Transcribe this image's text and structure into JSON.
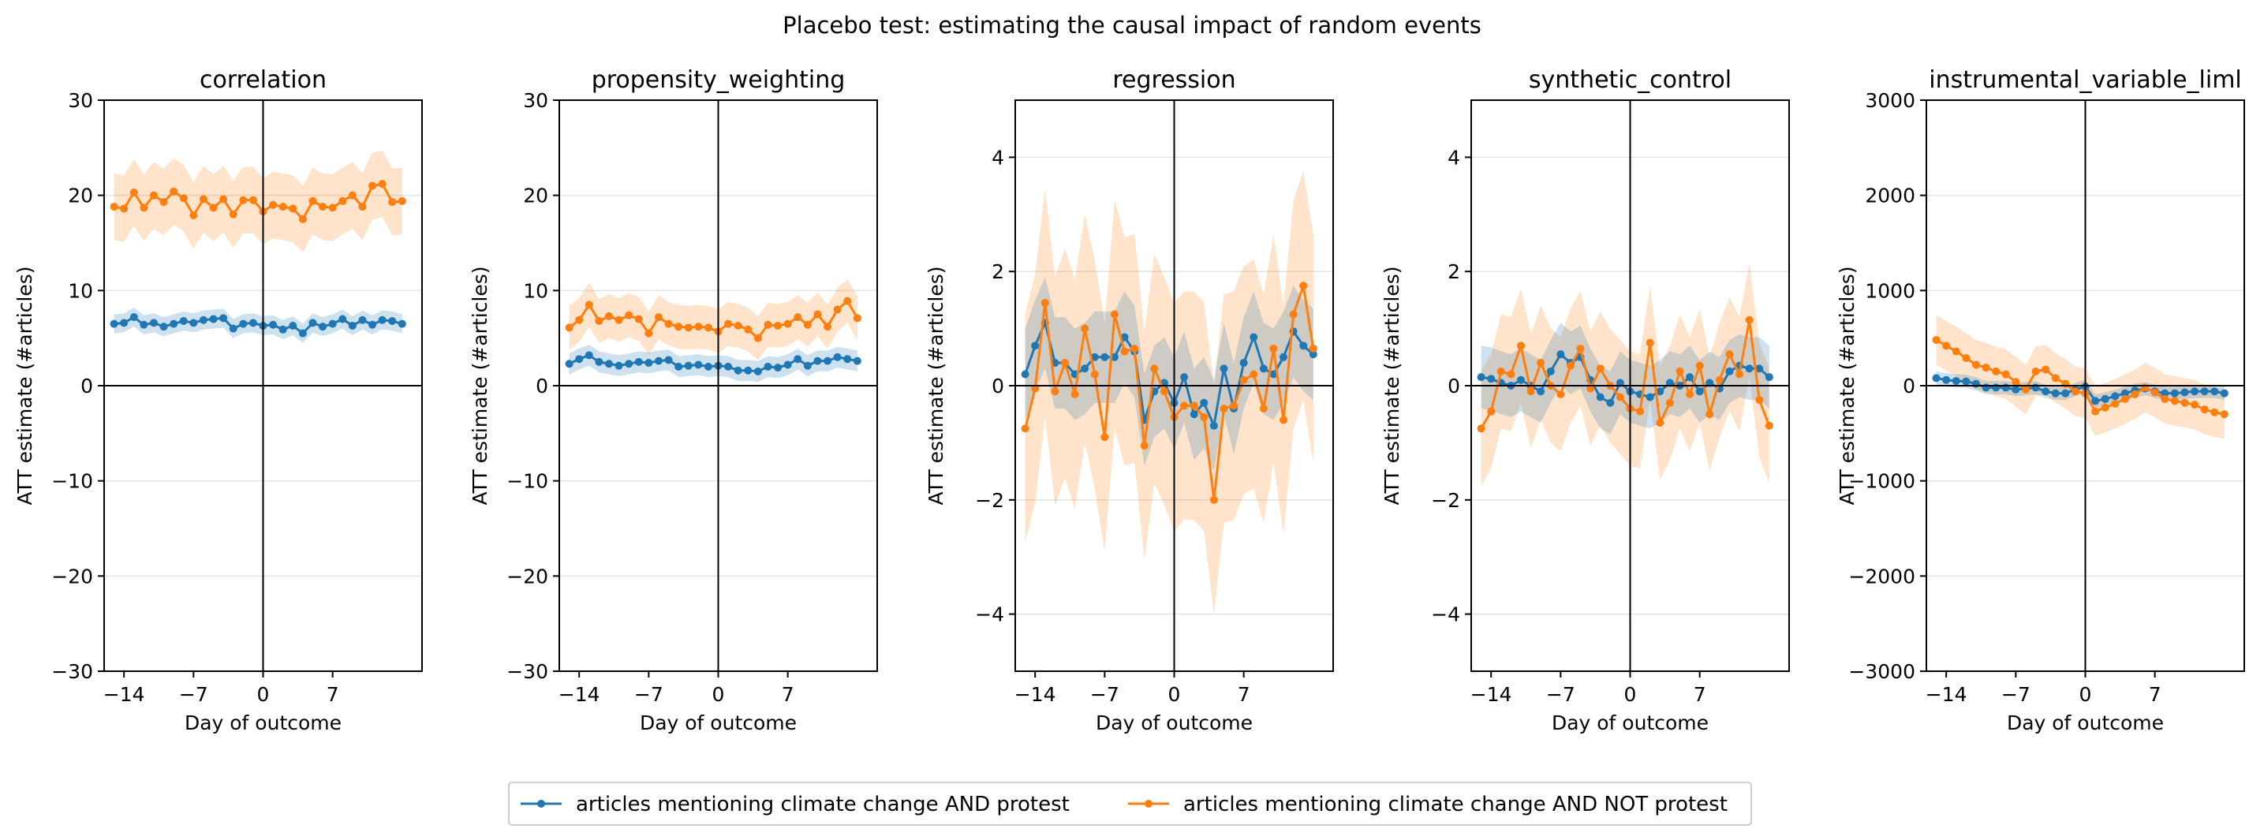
{
  "figure": {
    "suptitle": "Placebo test: estimating the causal impact of random events",
    "legend": {
      "placement": "bottom-center",
      "entries": [
        {
          "label": "articles mentioning climate change AND protest",
          "color": "#1f77b4"
        },
        {
          "label": "articles mentioning climate change AND NOT protest",
          "color": "#ff7f0e"
        }
      ]
    }
  },
  "chart_data": [
    {
      "type": "line",
      "title": "correlation",
      "xlabel": "Day of outcome",
      "ylabel": "ATT estimate (#articles)",
      "xlim": [
        -16,
        16
      ],
      "ylim": [
        -30,
        30
      ],
      "xticks": [
        -14,
        -7,
        0,
        7
      ],
      "yticks": [
        -30,
        -20,
        -10,
        0,
        10,
        20,
        30
      ],
      "x": [
        -15,
        -14,
        -13,
        -12,
        -11,
        -10,
        -9,
        -8,
        -7,
        -6,
        -5,
        -4,
        -3,
        -2,
        -1,
        0,
        1,
        2,
        3,
        4,
        5,
        6,
        7,
        8,
        9,
        10,
        11,
        12,
        13,
        14
      ],
      "series": [
        {
          "name": "articles mentioning climate change AND protest",
          "color": "#1f77b4",
          "values": [
            6.5,
            6.6,
            7.2,
            6.4,
            6.6,
            6.2,
            6.5,
            6.8,
            6.6,
            6.9,
            7.0,
            7.1,
            6.0,
            6.5,
            6.6,
            6.3,
            6.4,
            5.9,
            6.3,
            5.5,
            6.6,
            6.2,
            6.5,
            7.0,
            6.3,
            6.9,
            6.4,
            6.9,
            6.8,
            6.5
          ],
          "ci_halfwidth": 1.0
        },
        {
          "name": "articles mentioning climate change AND NOT protest",
          "color": "#ff7f0e",
          "values": [
            18.8,
            18.6,
            20.3,
            18.7,
            20.0,
            19.3,
            20.4,
            19.7,
            17.9,
            19.6,
            18.7,
            19.6,
            18.0,
            19.5,
            19.5,
            18.3,
            19.0,
            18.8,
            18.6,
            17.5,
            19.4,
            18.8,
            18.7,
            19.4,
            20.0,
            18.8,
            21.0,
            21.2,
            19.3,
            19.4
          ],
          "ci_halfwidth": 3.5
        }
      ]
    },
    {
      "type": "line",
      "title": "propensity_weighting",
      "xlabel": "Day of outcome",
      "ylabel": "ATT estimate (#articles)",
      "xlim": [
        -16,
        16
      ],
      "ylim": [
        -30,
        30
      ],
      "xticks": [
        -14,
        -7,
        0,
        7
      ],
      "yticks": [
        -30,
        -20,
        -10,
        0,
        10,
        20,
        30
      ],
      "x": [
        -15,
        -14,
        -13,
        -12,
        -11,
        -10,
        -9,
        -8,
        -7,
        -6,
        -5,
        -4,
        -3,
        -2,
        -1,
        0,
        1,
        2,
        3,
        4,
        5,
        6,
        7,
        8,
        9,
        10,
        11,
        12,
        13,
        14
      ],
      "series": [
        {
          "name": "articles mentioning climate change AND protest",
          "color": "#1f77b4",
          "values": [
            2.3,
            2.8,
            3.2,
            2.5,
            2.3,
            2.1,
            2.3,
            2.5,
            2.4,
            2.6,
            2.7,
            2.0,
            2.1,
            2.2,
            2.0,
            2.1,
            2.0,
            1.6,
            1.6,
            1.5,
            2.0,
            1.9,
            2.2,
            2.8,
            2.1,
            2.6,
            2.6,
            3.0,
            2.8,
            2.6
          ],
          "ci_halfwidth": 1.1
        },
        {
          "name": "articles mentioning climate change AND NOT protest",
          "color": "#ff7f0e",
          "values": [
            6.1,
            6.9,
            8.5,
            6.8,
            7.3,
            6.9,
            7.4,
            7.0,
            5.5,
            7.2,
            6.5,
            6.2,
            6.1,
            6.2,
            6.1,
            5.7,
            6.5,
            6.3,
            5.9,
            5.0,
            6.4,
            6.3,
            6.5,
            7.2,
            6.4,
            7.5,
            6.2,
            8.0,
            8.9,
            7.1
          ],
          "ci_halfwidth": 2.3
        }
      ]
    },
    {
      "type": "line",
      "title": "regression",
      "xlabel": "Day of outcome",
      "ylabel": "ATT estimate (#articles)",
      "xlim": [
        -16,
        16
      ],
      "ylim": [
        -5,
        5
      ],
      "xticks": [
        -14,
        -7,
        0,
        7
      ],
      "yticks": [
        -4,
        -2,
        0,
        2,
        4
      ],
      "x": [
        -15,
        -14,
        -13,
        -12,
        -11,
        -10,
        -9,
        -8,
        -7,
        -6,
        -5,
        -4,
        -3,
        -2,
        -1,
        0,
        1,
        2,
        3,
        4,
        5,
        6,
        7,
        8,
        9,
        10,
        11,
        12,
        13,
        14
      ],
      "series": [
        {
          "name": "articles mentioning climate change AND protest",
          "color": "#1f77b4",
          "values": [
            0.2,
            0.7,
            1.1,
            0.4,
            0.4,
            0.2,
            0.3,
            0.5,
            0.5,
            0.5,
            0.85,
            0.6,
            -0.6,
            -0.1,
            0.05,
            -0.3,
            0.15,
            -0.5,
            -0.3,
            -0.7,
            0.3,
            -0.4,
            0.4,
            0.85,
            0.3,
            0.2,
            0.5,
            0.95,
            0.7,
            0.55
          ],
          "ci_halfwidth": 0.8
        },
        {
          "name": "articles mentioning climate change AND NOT protest",
          "color": "#ff7f0e",
          "values": [
            -0.75,
            -0.05,
            1.45,
            -0.1,
            0.4,
            -0.15,
            1.0,
            0.2,
            -0.9,
            1.25,
            0.6,
            0.65,
            -1.05,
            0.3,
            -0.1,
            -0.55,
            -0.35,
            -0.35,
            -0.55,
            -2.0,
            -0.4,
            -0.35,
            0.1,
            0.2,
            -0.4,
            0.65,
            -0.6,
            1.25,
            1.75,
            0.65
          ],
          "ci_halfwidth": 2.0
        }
      ]
    },
    {
      "type": "line",
      "title": "synthetic_control",
      "xlabel": "Day of outcome",
      "ylabel": "ATT estimate (#articles)",
      "xlim": [
        -16,
        16
      ],
      "ylim": [
        -5,
        5
      ],
      "xticks": [
        -14,
        -7,
        0,
        7
      ],
      "yticks": [
        -4,
        -2,
        0,
        2,
        4
      ],
      "x": [
        -15,
        -14,
        -13,
        -12,
        -11,
        -10,
        -9,
        -8,
        -7,
        -6,
        -5,
        -4,
        -3,
        -2,
        -1,
        0,
        1,
        2,
        3,
        4,
        5,
        6,
        7,
        8,
        9,
        10,
        11,
        12,
        13,
        14
      ],
      "series": [
        {
          "name": "articles mentioning climate change AND protest",
          "color": "#1f77b4",
          "values": [
            0.15,
            0.12,
            0.05,
            0.0,
            0.1,
            0.0,
            -0.1,
            0.25,
            0.55,
            0.4,
            0.5,
            0.1,
            -0.2,
            -0.3,
            0.05,
            -0.1,
            -0.15,
            -0.2,
            -0.1,
            0.05,
            0.0,
            0.15,
            -0.1,
            0.05,
            -0.05,
            0.25,
            0.35,
            0.3,
            0.3,
            0.15
          ],
          "ci_halfwidth": 0.55
        },
        {
          "name": "articles mentioning climate change AND NOT protest",
          "color": "#ff7f0e",
          "values": [
            -0.75,
            -0.45,
            0.25,
            0.2,
            0.7,
            -0.1,
            0.4,
            0.0,
            -0.15,
            0.35,
            0.65,
            -0.05,
            0.3,
            0.0,
            -0.2,
            -0.4,
            -0.45,
            0.75,
            -0.65,
            -0.3,
            0.25,
            -0.15,
            0.35,
            -0.5,
            0.1,
            0.55,
            0.2,
            1.15,
            -0.25,
            -0.7
          ],
          "ci_halfwidth": 1.0
        }
      ]
    },
    {
      "type": "line",
      "title": "instrumental_variable_liml",
      "xlabel": "Day of outcome",
      "ylabel": "ATT estimate (#articles)",
      "xlim": [
        -16,
        16
      ],
      "ylim": [
        -3000,
        3000
      ],
      "xticks": [
        -14,
        -7,
        0,
        7
      ],
      "yticks": [
        -3000,
        -2000,
        -1000,
        0,
        1000,
        2000,
        3000
      ],
      "x": [
        -15,
        -14,
        -13,
        -12,
        -11,
        -10,
        -9,
        -8,
        -7,
        -6,
        -5,
        -4,
        -3,
        -2,
        -1,
        0,
        1,
        2,
        3,
        4,
        5,
        6,
        7,
        8,
        9,
        10,
        11,
        12,
        13,
        14
      ],
      "series": [
        {
          "name": "articles mentioning climate change AND protest",
          "color": "#1f77b4",
          "values": [
            80,
            60,
            50,
            45,
            20,
            -20,
            -20,
            -20,
            -40,
            -30,
            -20,
            -60,
            -80,
            -80,
            -40,
            -10,
            -160,
            -140,
            -110,
            -80,
            -50,
            -30,
            -60,
            -80,
            -80,
            -70,
            -60,
            -60,
            -60,
            -80
          ],
          "ci_halfwidth": 70
        },
        {
          "name": "articles mentioning climate change AND NOT protest",
          "color": "#ff7f0e",
          "values": [
            480,
            420,
            360,
            290,
            220,
            190,
            150,
            120,
            40,
            -40,
            150,
            170,
            80,
            20,
            -60,
            -80,
            -270,
            -230,
            -190,
            -140,
            -90,
            -20,
            -70,
            -140,
            -160,
            -180,
            -200,
            -250,
            -280,
            -300
          ],
          "ci_halfwidth": 260
        }
      ]
    }
  ]
}
